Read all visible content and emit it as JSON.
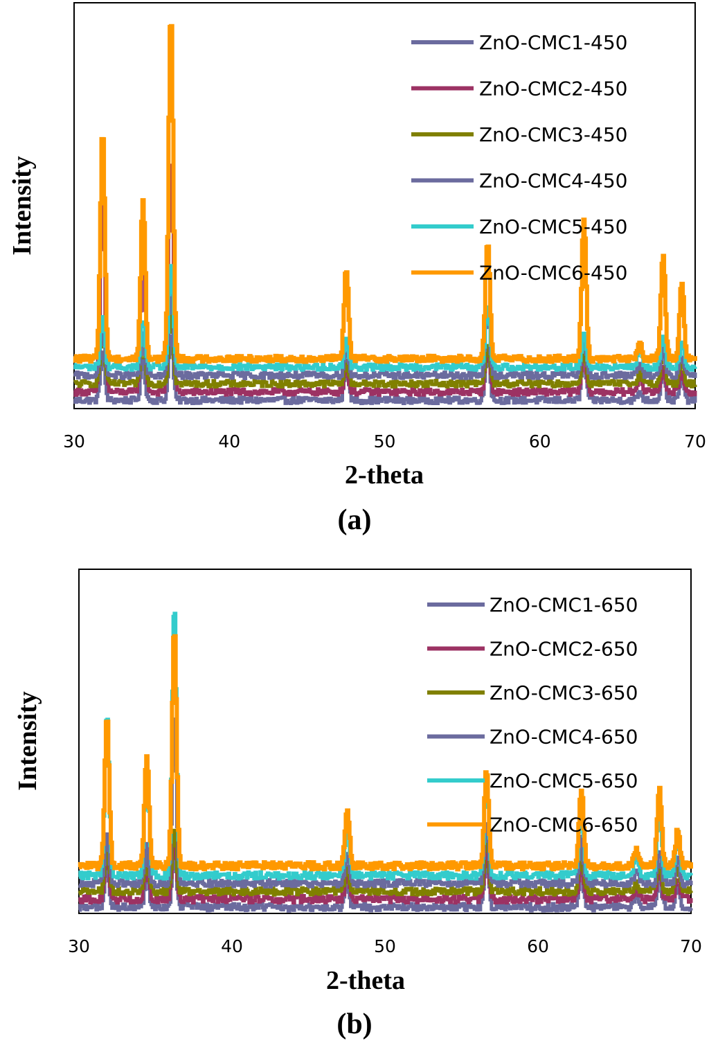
{
  "chart_data": [
    {
      "type": "line",
      "panel_label": "(a)",
      "xlabel": "2-theta",
      "ylabel": "Intensity",
      "xlim": [
        30,
        70
      ],
      "x_ticks": [
        "30",
        "40",
        "50",
        "60",
        "70"
      ],
      "legend_position": "top-right",
      "peaks_2theta": [
        31.8,
        34.4,
        36.2,
        47.5,
        56.6,
        62.8,
        66.4,
        67.9,
        69.1
      ],
      "series": [
        {
          "name": "ZnO-CMC1-450",
          "color": "#6b6b9e",
          "offset": 0,
          "peak_heights": [
            70,
            55,
            95,
            45,
            75,
            65,
            12,
            40,
            30
          ]
        },
        {
          "name": "ZnO-CMC2-450",
          "color": "#9c3263",
          "offset": 12,
          "peak_heights": [
            300,
            220,
            340,
            35,
            70,
            55,
            25,
            35,
            28
          ]
        },
        {
          "name": "ZnO-CMC3-450",
          "color": "#808000",
          "offset": 24,
          "peak_heights": [
            80,
            70,
            110,
            30,
            60,
            55,
            18,
            45,
            30
          ]
        },
        {
          "name": "ZnO-CMC4-450",
          "color": "#6b6b9e",
          "offset": 36,
          "peak_heights": [
            70,
            60,
            130,
            35,
            95,
            60,
            15,
            40,
            30
          ]
        },
        {
          "name": "ZnO-CMC5-450",
          "color": "#33cccc",
          "offset": 48,
          "peak_heights": [
            75,
            65,
            150,
            40,
            90,
            50,
            28,
            45,
            35
          ]
        },
        {
          "name": "ZnO-CMC6-450",
          "color": "#ff9900",
          "offset": 60,
          "peak_heights": [
            330,
            230,
            500,
            130,
            170,
            200,
            20,
            150,
            110
          ]
        }
      ]
    },
    {
      "type": "line",
      "panel_label": "(b)",
      "xlabel": "2-theta",
      "ylabel": "Intensity",
      "xlim": [
        30,
        70
      ],
      "x_ticks": [
        "30",
        "40",
        "50",
        "60",
        "70"
      ],
      "legend_position": "top-right",
      "peaks_2theta": [
        31.8,
        34.4,
        36.2,
        47.5,
        56.6,
        62.8,
        66.4,
        67.9,
        69.1
      ],
      "series": [
        {
          "name": "ZnO-CMC1-650",
          "color": "#6b6b9e",
          "offset": 0,
          "peak_heights": [
            50,
            40,
            70,
            30,
            60,
            45,
            12,
            35,
            25
          ]
        },
        {
          "name": "ZnO-CMC2-650",
          "color": "#9c3263",
          "offset": 10,
          "peak_heights": [
            55,
            45,
            75,
            30,
            65,
            45,
            12,
            35,
            25
          ]
        },
        {
          "name": "ZnO-CMC3-650",
          "color": "#808000",
          "offset": 20,
          "peak_heights": [
            55,
            45,
            80,
            32,
            70,
            50,
            12,
            38,
            28
          ]
        },
        {
          "name": "ZnO-CMC4-650",
          "color": "#6b6b9e",
          "offset": 30,
          "peak_heights": [
            60,
            50,
            210,
            35,
            80,
            55,
            15,
            40,
            30
          ]
        },
        {
          "name": "ZnO-CMC5-650",
          "color": "#33cccc",
          "offset": 40,
          "peak_heights": [
            200,
            150,
            340,
            60,
            120,
            100,
            22,
            90,
            60
          ]
        },
        {
          "name": "ZnO-CMC6-650",
          "color": "#ff9900",
          "offset": 52,
          "peak_heights": [
            185,
            140,
            300,
            70,
            120,
            95,
            20,
            100,
            45
          ]
        }
      ]
    }
  ]
}
